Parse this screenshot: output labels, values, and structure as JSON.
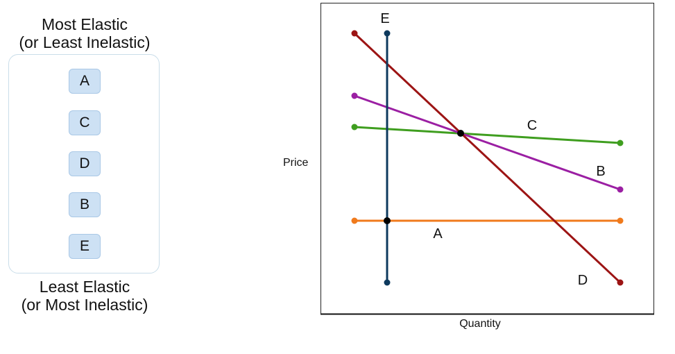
{
  "ranking": {
    "top_line1": "Most Elastic",
    "top_line2": "(or Least Inelastic)",
    "bottom_line1": "Least Elastic",
    "bottom_line2": "(or Most Inelastic)",
    "items": [
      "A",
      "C",
      "D",
      "B",
      "E"
    ]
  },
  "graph": {
    "xlabel": "Quantity",
    "ylabel": "Price",
    "lines": [
      {
        "label": "A",
        "color": "#f07a1c"
      },
      {
        "label": "B",
        "color": "#9b1fa3"
      },
      {
        "label": "C",
        "color": "#3f9e1f"
      },
      {
        "label": "D",
        "color": "#9c1414"
      },
      {
        "label": "E",
        "color": "#0e3a5e"
      }
    ]
  }
}
